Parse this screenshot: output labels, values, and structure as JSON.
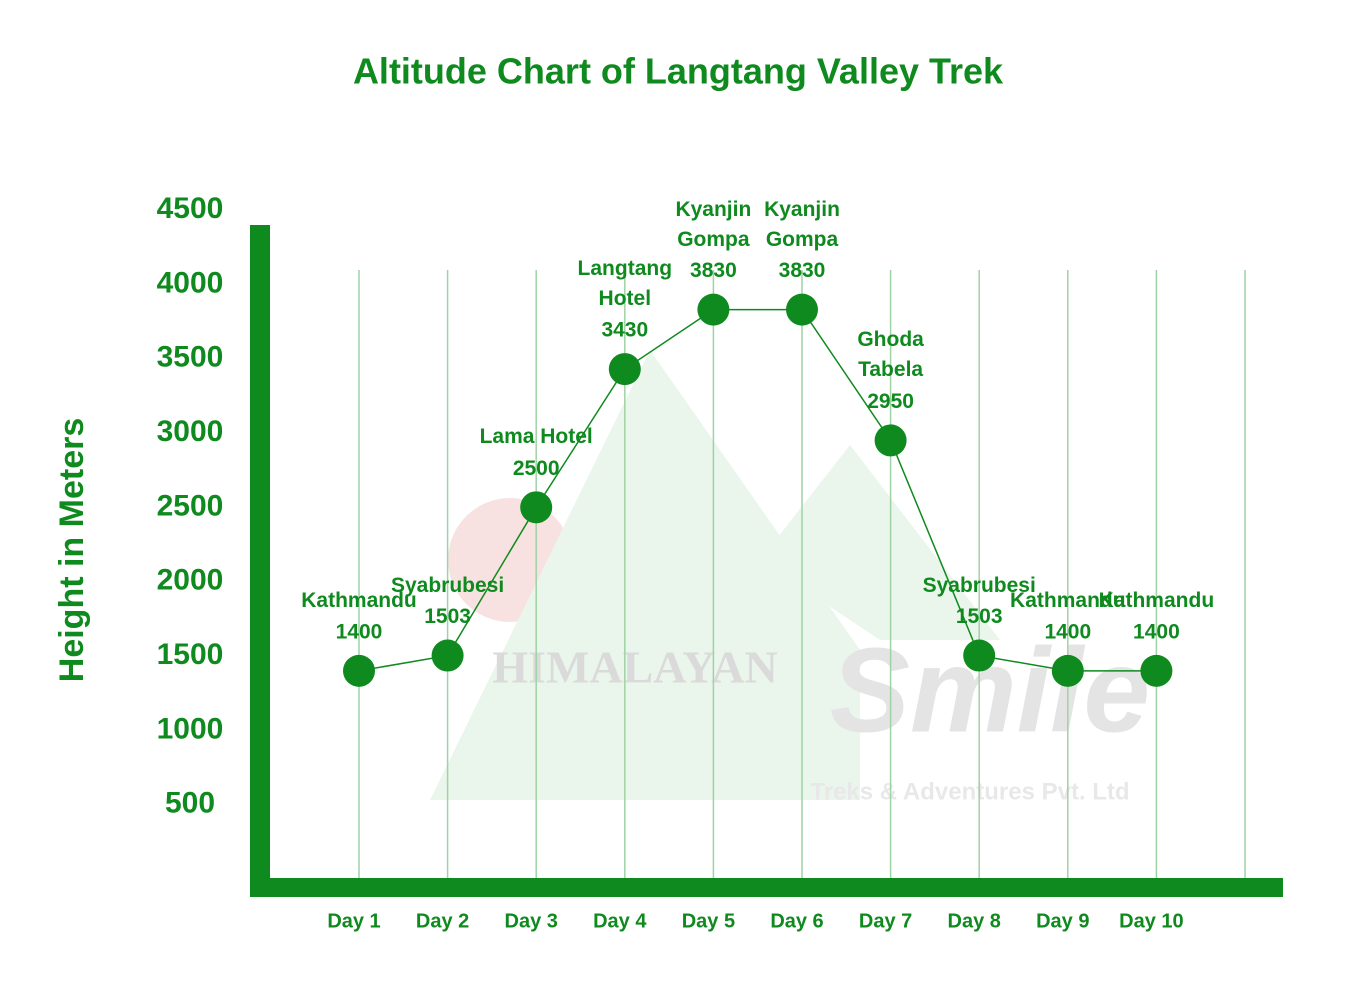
{
  "chart_data": {
    "type": "line",
    "title": "Altitude Chart of Langtang Valley Trek",
    "y_label": "Height in Meters",
    "categories": [
      "Day 1",
      "Day 2",
      "Day 3",
      "Day 4",
      "Day 5",
      "Day 6",
      "Day 7",
      "Day 8",
      "Day 9",
      "Day 10"
    ],
    "series": [
      {
        "values": [
          1400,
          1503,
          2500,
          3430,
          3830,
          3830,
          2950,
          1503,
          1400,
          1400
        ],
        "color": "#0f8a1e",
        "point_labels": [
          "Kathmandu",
          "Syabrubesi",
          "Lama Hotel",
          "Langtang Hotel",
          "Kyanjin Gompa",
          "Kyanjin Gompa",
          "Ghoda Tabela",
          "Syabrubesi",
          "Kathmandu",
          "Kathmandu"
        ]
      }
    ],
    "ylim": [
      0,
      4500
    ],
    "yticks": [
      500,
      1000,
      1500,
      2000,
      2500,
      3000,
      3500,
      4000,
      4500
    ],
    "grid": true,
    "watermark": {
      "brand": "HIMALAYAN",
      "script": "Smile",
      "tagline": "Treks & Adventures Pvt. Ltd"
    }
  }
}
